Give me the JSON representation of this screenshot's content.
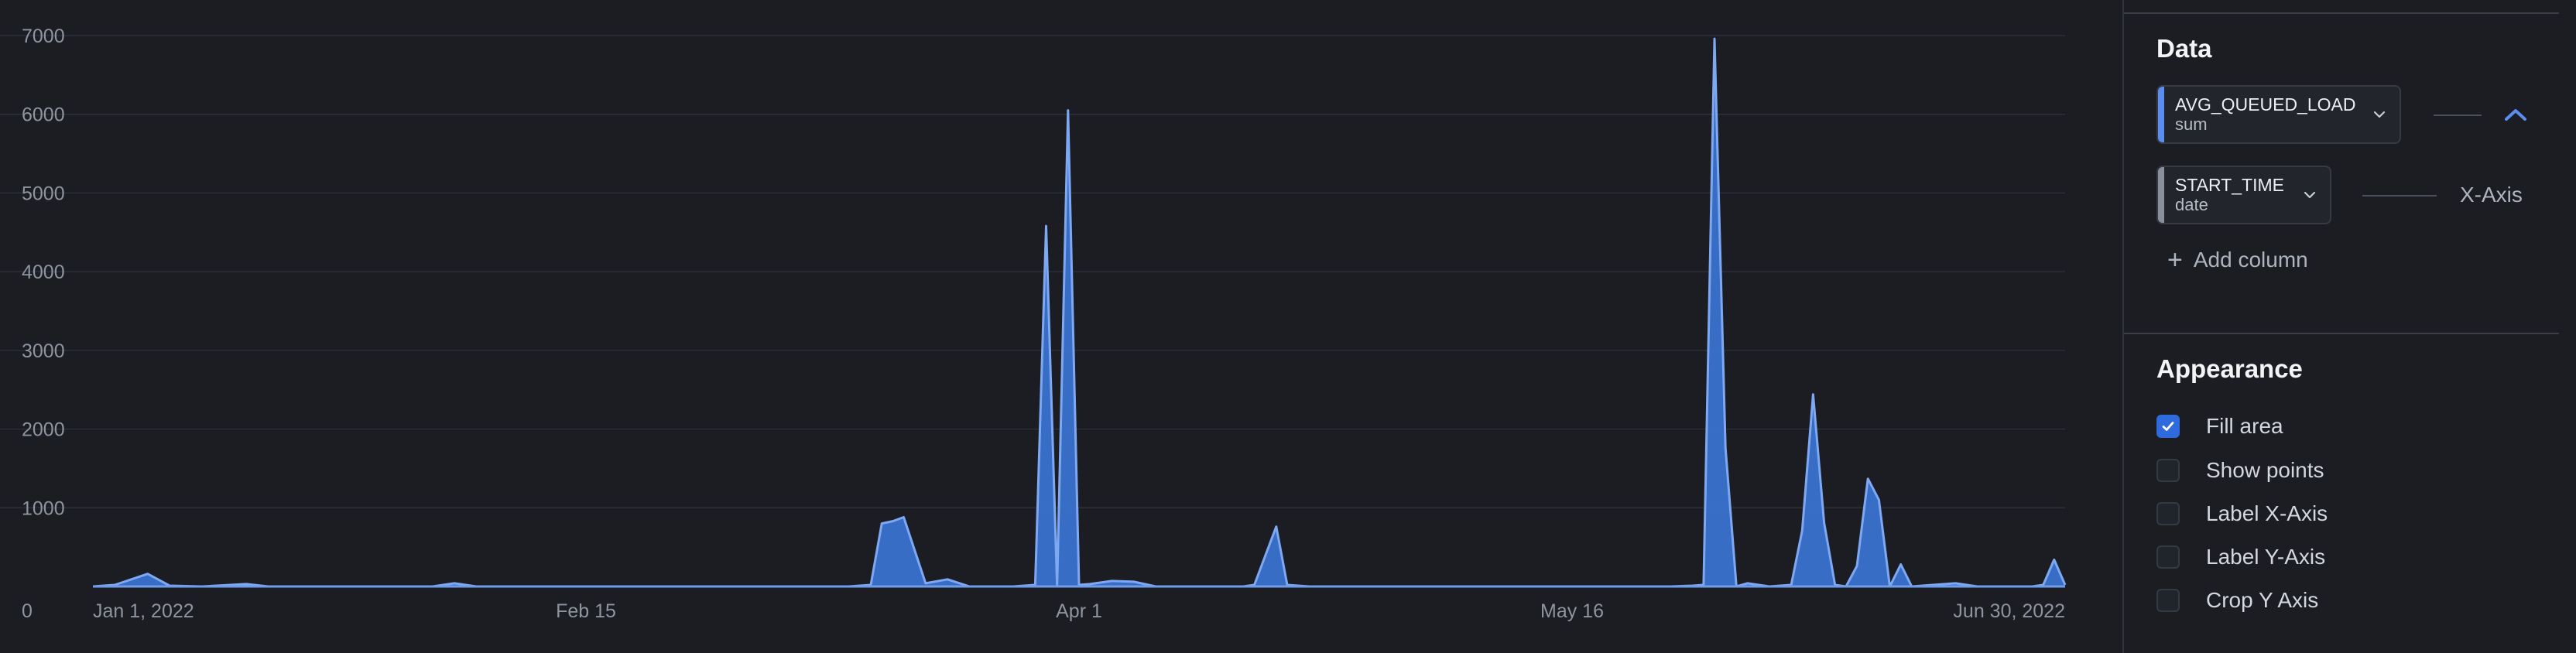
{
  "chart_data": {
    "type": "area",
    "series": [
      {
        "values": [
          {
            "x": "2022-01-01",
            "y": 0
          },
          {
            "x": "2022-01-03",
            "y": 20
          },
          {
            "x": "2022-01-06",
            "y": 160
          },
          {
            "x": "2022-01-08",
            "y": 10
          },
          {
            "x": "2022-01-11",
            "y": 0
          },
          {
            "x": "2022-01-15",
            "y": 30
          },
          {
            "x": "2022-01-17",
            "y": 0
          },
          {
            "x": "2022-02-01",
            "y": 0
          },
          {
            "x": "2022-02-03",
            "y": 40
          },
          {
            "x": "2022-02-05",
            "y": 0
          },
          {
            "x": "2022-03-07",
            "y": 0
          },
          {
            "x": "2022-03-11",
            "y": 0
          },
          {
            "x": "2022-03-13",
            "y": 20
          },
          {
            "x": "2022-03-14",
            "y": 800
          },
          {
            "x": "2022-03-15",
            "y": 830
          },
          {
            "x": "2022-03-16",
            "y": 880
          },
          {
            "x": "2022-03-18",
            "y": 40
          },
          {
            "x": "2022-03-20",
            "y": 90
          },
          {
            "x": "2022-03-22",
            "y": 0
          },
          {
            "x": "2022-03-26",
            "y": 0
          },
          {
            "x": "2022-03-28",
            "y": 20
          },
          {
            "x": "2022-03-29",
            "y": 4580
          },
          {
            "x": "2022-03-30",
            "y": 0
          },
          {
            "x": "2022-03-31",
            "y": 6050
          },
          {
            "x": "2022-04-01",
            "y": 20
          },
          {
            "x": "2022-04-02",
            "y": 30
          },
          {
            "x": "2022-04-04",
            "y": 70
          },
          {
            "x": "2022-04-06",
            "y": 60
          },
          {
            "x": "2022-04-08",
            "y": 0
          },
          {
            "x": "2022-04-16",
            "y": 0
          },
          {
            "x": "2022-04-17",
            "y": 20
          },
          {
            "x": "2022-04-19",
            "y": 760
          },
          {
            "x": "2022-04-20",
            "y": 20
          },
          {
            "x": "2022-04-22",
            "y": 0
          },
          {
            "x": "2022-05-25",
            "y": 0
          },
          {
            "x": "2022-05-27",
            "y": 10
          },
          {
            "x": "2022-05-28",
            "y": 20
          },
          {
            "x": "2022-05-29",
            "y": 6960
          },
          {
            "x": "2022-05-30",
            "y": 1760
          },
          {
            "x": "2022-05-31",
            "y": 0
          },
          {
            "x": "2022-06-01",
            "y": 40
          },
          {
            "x": "2022-06-03",
            "y": 0
          },
          {
            "x": "2022-06-05",
            "y": 20
          },
          {
            "x": "2022-06-06",
            "y": 710
          },
          {
            "x": "2022-06-07",
            "y": 2440
          },
          {
            "x": "2022-06-08",
            "y": 810
          },
          {
            "x": "2022-06-09",
            "y": 20
          },
          {
            "x": "2022-06-10",
            "y": 0
          },
          {
            "x": "2022-06-11",
            "y": 260
          },
          {
            "x": "2022-06-12",
            "y": 1370
          },
          {
            "x": "2022-06-13",
            "y": 1100
          },
          {
            "x": "2022-06-14",
            "y": 0
          },
          {
            "x": "2022-06-15",
            "y": 280
          },
          {
            "x": "2022-06-16",
            "y": 0
          },
          {
            "x": "2022-06-20",
            "y": 40
          },
          {
            "x": "2022-06-22",
            "y": 0
          },
          {
            "x": "2022-06-27",
            "y": 0
          },
          {
            "x": "2022-06-28",
            "y": 20
          },
          {
            "x": "2022-06-29",
            "y": 340
          },
          {
            "x": "2022-06-30",
            "y": 20
          }
        ]
      }
    ],
    "ylim": [
      0,
      7000
    ],
    "yticks": [
      "0",
      "1000",
      "2000",
      "3000",
      "4000",
      "5000",
      "6000",
      "7000"
    ],
    "xticks": [
      {
        "label": "Jan 1, 2022",
        "x": "2022-01-01"
      },
      {
        "label": "Feb 15",
        "x": "2022-02-15"
      },
      {
        "label": "Apr 1",
        "x": "2022-04-01"
      },
      {
        "label": "May 16",
        "x": "2022-05-16"
      },
      {
        "label": "Jun 30, 2022",
        "x": "2022-06-30"
      }
    ],
    "xrange": [
      "2022-01-01",
      "2022-06-30"
    ],
    "grid": true,
    "fill": true,
    "color": "#4a86e8"
  },
  "panel": {
    "data_title": "Data",
    "y_column": {
      "name": "AVG_QUEUED_LOAD",
      "aggregation": "sum",
      "accent": "#5b8def"
    },
    "x_column": {
      "name": "START_TIME",
      "aggregation": "date",
      "role": "X-Axis",
      "accent": "#8a909b"
    },
    "line_type_icon": "line-type-chevron-icon",
    "add_column": "Add column",
    "appearance_title": "Appearance",
    "options": [
      {
        "label": "Fill area",
        "checked": true
      },
      {
        "label": "Show points",
        "checked": false
      },
      {
        "label": "Label X-Axis",
        "checked": false
      },
      {
        "label": "Label Y-Axis",
        "checked": false
      },
      {
        "label": "Crop Y Axis",
        "checked": false
      }
    ]
  }
}
